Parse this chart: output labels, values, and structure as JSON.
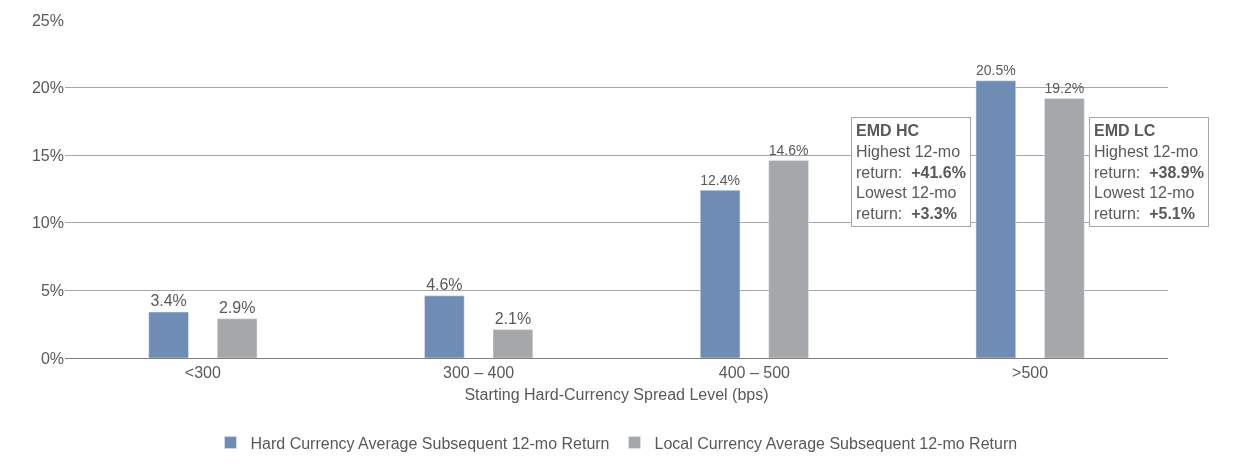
{
  "chart_data": {
    "type": "bar",
    "xlabel": "Starting Hard-Currency Spread Level (bps)",
    "categories": [
      "<300",
      "300 – 400",
      "400 – 500",
      ">500"
    ],
    "series": [
      {
        "name": "Hard Currency Average Subsequent 12-mo Return",
        "color": "#6f8db4",
        "values": [
          3.4,
          4.6,
          12.4,
          20.5
        ]
      },
      {
        "name": "Local Currency Average Subsequent 12-mo Return",
        "color": "#a6a7a9",
        "values": [
          2.9,
          2.1,
          14.6,
          19.2
        ]
      }
    ],
    "value_labels": [
      [
        "3.4%",
        "4.6%",
        "12.4%",
        "20.5%"
      ],
      [
        "2.9%",
        "2.1%",
        "14.6%",
        "19.2%"
      ]
    ],
    "ylim": [
      0,
      25
    ],
    "yticks": [
      {
        "value": 0,
        "label": "0%"
      },
      {
        "value": 5,
        "label": "5%"
      },
      {
        "value": 10,
        "label": "10%"
      },
      {
        "value": 15,
        "label": "15%"
      },
      {
        "value": 20,
        "label": "20%"
      },
      {
        "value": 25,
        "label": "25%"
      }
    ],
    "grid": "y",
    "legend": "bottom",
    "annotations": [
      "EMD HC\nHighest 12-mo\nreturn:  +41.6%\nLowest 12-mo\nreturn:  +3.3%",
      "EMD LC\nHighest 12-mo\nreturn:  +38.9%\nLowest 12-mo\nreturn:  +5.1%"
    ]
  }
}
